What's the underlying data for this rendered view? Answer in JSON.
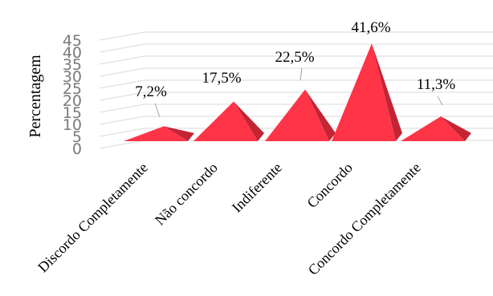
{
  "chart_data": {
    "type": "bar",
    "shape": "3d-pyramid",
    "categories": [
      "Discordo Completamente",
      "Não concordo",
      "Indiferente",
      "Concordo",
      "Concordo Completamente"
    ],
    "values": [
      7.2,
      17.5,
      22.5,
      41.6,
      11.3
    ],
    "data_labels": [
      "7,2%",
      "17,5%",
      "22,5%",
      "41,6%",
      "11,3%"
    ],
    "ylabel": "Percentagem",
    "xlabel": "",
    "title": "",
    "ylim": [
      0,
      45
    ],
    "yticks": [
      0,
      5,
      10,
      15,
      20,
      25,
      30,
      35,
      40,
      45
    ],
    "grid": true,
    "legend": "none",
    "colors": {
      "front": "#ff3447",
      "side": "#c42535",
      "grid": "#d9d9d9"
    }
  }
}
